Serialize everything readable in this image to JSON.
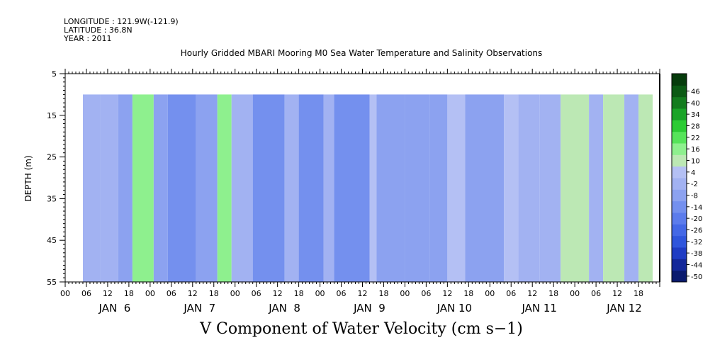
{
  "header": {
    "longitude": "LONGITUDE : 121.9W(-121.9)",
    "latitude": "LATITUDE : 36.8N",
    "year": "YEAR : 2011"
  },
  "chart_data": {
    "type": "heatmap",
    "title": "Hourly Gridded MBARI Mooring M0 Sea Water Temperature and Salinity Observations",
    "xlabel": "V Component of Water Velocity (cm s−1)",
    "ylabel": "DEPTH (m)",
    "x_range_hours": [
      0,
      168
    ],
    "data_start_hour": 5,
    "data_end_hour": 166,
    "y_range_m": [
      5,
      55
    ],
    "data_depth_range_m": [
      10,
      55
    ],
    "y_ticks": [
      5,
      15,
      25,
      35,
      45,
      55
    ],
    "hour_tick_labels": [
      "00",
      "06",
      "12",
      "18"
    ],
    "day_labels": [
      "JAN  6",
      "JAN  7",
      "JAN  8",
      "JAN  9",
      "JAN 10",
      "JAN 11",
      "JAN 12"
    ],
    "colorbar_levels": [
      46,
      40,
      34,
      28,
      22,
      16,
      10,
      4,
      -2,
      -8,
      -14,
      -20,
      -26,
      -32,
      -38,
      -44,
      -50
    ],
    "colorbar_colors": [
      "#0a1a6e",
      "#14289a",
      "#1f3cc4",
      "#2f55dc",
      "#4468e6",
      "#5c7cec",
      "#7490ee",
      "#8ca2f0",
      "#a2b2f2",
      "#b4c0f4",
      "#bce8b4",
      "#8ef08e",
      "#56e45a",
      "#2ccc34",
      "#1aa428",
      "#137c1e",
      "#0b5a14",
      "#063c0c"
    ],
    "bands": [
      {
        "start_hour": 5,
        "end_hour": 10,
        "value": -4
      },
      {
        "start_hour": 10,
        "end_hour": 15,
        "value": -6
      },
      {
        "start_hour": 15,
        "end_hour": 19,
        "value": -10
      },
      {
        "start_hour": 19,
        "end_hour": 25,
        "value": 14
      },
      {
        "start_hour": 25,
        "end_hour": 29,
        "value": -10
      },
      {
        "start_hour": 29,
        "end_hour": 37,
        "value": -14
      },
      {
        "start_hour": 37,
        "end_hour": 43,
        "value": -8
      },
      {
        "start_hour": 43,
        "end_hour": 47,
        "value": 12
      },
      {
        "start_hour": 47,
        "end_hour": 53,
        "value": -6
      },
      {
        "start_hour": 53,
        "end_hour": 62,
        "value": -18
      },
      {
        "start_hour": 62,
        "end_hour": 66,
        "value": -4
      },
      {
        "start_hour": 66,
        "end_hour": 73,
        "value": -16
      },
      {
        "start_hour": 73,
        "end_hour": 76,
        "value": -2
      },
      {
        "start_hour": 76,
        "end_hour": 86,
        "value": -16
      },
      {
        "start_hour": 86,
        "end_hour": 88,
        "value": 2
      },
      {
        "start_hour": 88,
        "end_hour": 96,
        "value": -8
      },
      {
        "start_hour": 96,
        "end_hour": 103,
        "value": -12
      },
      {
        "start_hour": 103,
        "end_hour": 108,
        "value": -10
      },
      {
        "start_hour": 108,
        "end_hour": 113,
        "value": 4
      },
      {
        "start_hour": 113,
        "end_hour": 124,
        "value": -8
      },
      {
        "start_hour": 124,
        "end_hour": 128,
        "value": 4
      },
      {
        "start_hour": 128,
        "end_hour": 134,
        "value": -6
      },
      {
        "start_hour": 134,
        "end_hour": 140,
        "value": -4
      },
      {
        "start_hour": 140,
        "end_hour": 148,
        "value": 6
      },
      {
        "start_hour": 148,
        "end_hour": 152,
        "value": -4
      },
      {
        "start_hour": 152,
        "end_hour": 158,
        "value": 10
      },
      {
        "start_hour": 158,
        "end_hour": 162,
        "value": -2
      },
      {
        "start_hour": 162,
        "end_hour": 166,
        "value": 8
      }
    ]
  }
}
